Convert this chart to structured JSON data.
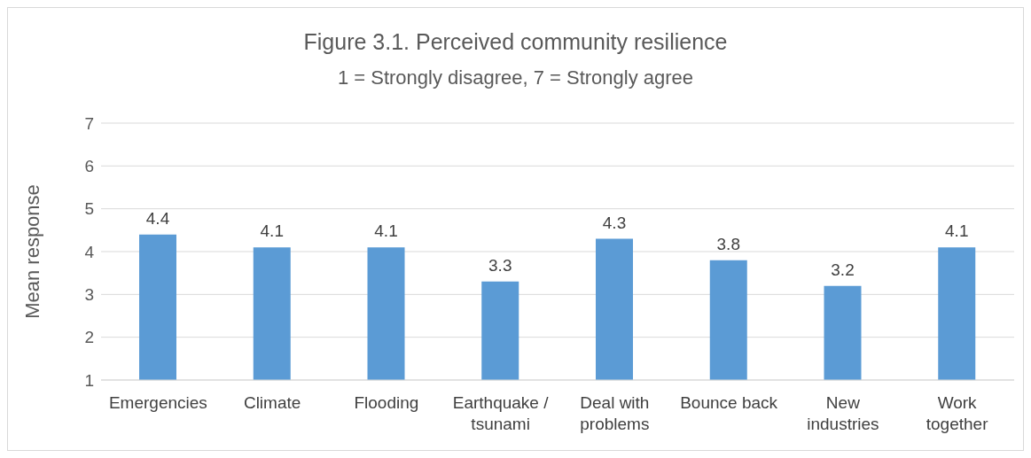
{
  "chart_data": {
    "type": "bar",
    "title": "Figure 3.1. Perceived community resilience",
    "subtitle": "1 = Strongly disagree, 7 = Strongly agree",
    "ylabel": "Mean response",
    "categories": [
      "Emergencies",
      "Climate",
      "Flooding",
      "Earthquake / tsunami",
      "Deal with problems",
      "Bounce back",
      "New industries",
      "Work together"
    ],
    "values": [
      4.4,
      4.1,
      4.1,
      3.3,
      4.3,
      3.8,
      3.2,
      4.1
    ],
    "color": "#5b9bd5",
    "ylim": [
      1,
      7
    ],
    "yticks": [
      1,
      2,
      3,
      4,
      5,
      6,
      7
    ],
    "grid": "y",
    "data_labels": true
  }
}
